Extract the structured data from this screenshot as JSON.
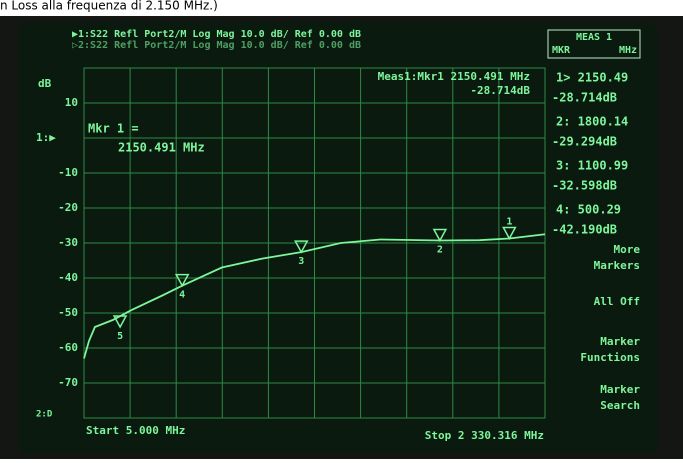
{
  "caption": "n Loss alla frequenza di 2.150 MHz.)",
  "chart_data": {
    "type": "line",
    "header": [
      "▶1:S22 Refl Port2/M Log Mag   10.0 dB/ Ref   0.00 dB",
      "▷2:S22 Refl Port2/M Log Mag   10.0 dB/ Ref   0.00 dB"
    ],
    "y_label": "dB",
    "channel_labels": [
      "1:▶",
      "2:D"
    ],
    "readout": [
      "Meas1:Mkr1 2150.491 MHz",
      "-28.714dB"
    ],
    "marker_note": [
      "Mkr 1 =",
      "2150.491 MHz"
    ],
    "start_label": "Start 5.000 MHz",
    "stop_label": "Stop 2 330.316 MHz",
    "xlim": [
      5,
      2330.316
    ],
    "ylim": [
      -80,
      20
    ],
    "yticks": [
      10,
      {
        "value": 0,
        "label": ""
      },
      -10,
      -20,
      -30,
      -40,
      -50,
      -60,
      -70
    ],
    "grid": true,
    "series": [
      {
        "color": "#7df59a",
        "x": [
          5,
          30,
          60,
          150,
          250,
          400,
          500.29,
          700,
          900,
          1100.99,
          1300,
          1500,
          1800.14,
          2000,
          2150.49,
          2330.316
        ],
        "values": [
          -63,
          -58,
          -54,
          -52,
          -49,
          -45,
          -42.19,
          -37,
          -34.5,
          -32.598,
          -30,
          -29,
          -29.294,
          -29.2,
          -28.714,
          -27.5
        ]
      }
    ],
    "markers": [
      {
        "label": "1",
        "x": 2150.49,
        "value": -28.714
      },
      {
        "label": "2",
        "x": 1800.14,
        "value": -29.294
      },
      {
        "label": "3",
        "x": 1100.99,
        "value": -32.598
      },
      {
        "label": "4",
        "x": 500.29,
        "value": -42.19
      },
      {
        "label": "5",
        "x": 187,
        "value": -54
      }
    ]
  },
  "softkeys": {
    "title": [
      "MEAS 1",
      "MKR",
      "MHz"
    ],
    "readouts": [
      [
        "1> 2150.49",
        "-28.714dB"
      ],
      [
        "2: 1800.14",
        "-29.294dB"
      ],
      [
        "3: 1100.99",
        "-32.598dB"
      ],
      [
        "4: 500.29",
        "-42.190dB"
      ]
    ],
    "buttons": [
      [
        "More",
        "Markers"
      ],
      [
        "All Off"
      ],
      [
        "Marker",
        "Functions"
      ],
      [
        "Marker",
        "Search"
      ]
    ]
  }
}
